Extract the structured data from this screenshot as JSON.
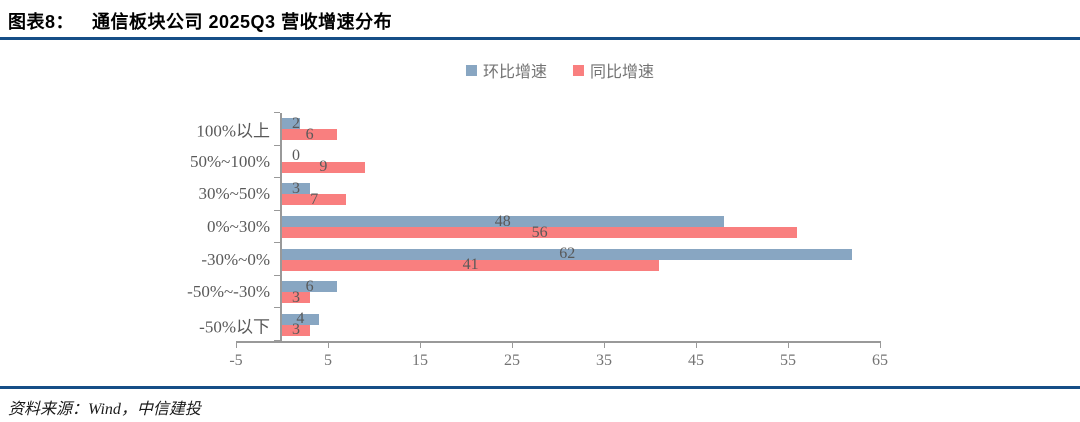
{
  "title": {
    "prefix": "图表8：",
    "text": "通信板块公司 2025Q3 营收增速分布"
  },
  "source": "资料来源：Wind，中信建投",
  "colors": {
    "qoq_blue": "#88A6C2",
    "yoy_red": "#F97F7F",
    "rule_navy": "#164E87",
    "value_label": "#595959",
    "axis_gray": "#999999"
  },
  "legend": {
    "items": [
      {
        "label": "环比增速",
        "color": "#88A6C2"
      },
      {
        "label": "同比增速",
        "color": "#F97F7F"
      }
    ]
  },
  "chart_data": {
    "type": "bar",
    "orientation": "horizontal",
    "title": "通信板块公司 2025Q3 营收增速分布",
    "categories": [
      "100%以上",
      "50%~100%",
      "30%~50%",
      "0%~30%",
      "-30%~0%",
      "-50%~-30%",
      "-50%以下"
    ],
    "series": [
      {
        "name": "环比增速",
        "color": "#88A6C2",
        "values": [
          2,
          0,
          3,
          48,
          62,
          6,
          4
        ]
      },
      {
        "name": "同比增速",
        "color": "#F97F7F",
        "values": [
          6,
          9,
          7,
          56,
          41,
          3,
          3
        ]
      }
    ],
    "xlim": [
      -5,
      65
    ],
    "xticks": [
      -5,
      5,
      15,
      25,
      35,
      45,
      55,
      65
    ],
    "xlabel": "",
    "ylabel": "",
    "grid": false,
    "legend_position": "top-center",
    "data_labels": "center"
  }
}
